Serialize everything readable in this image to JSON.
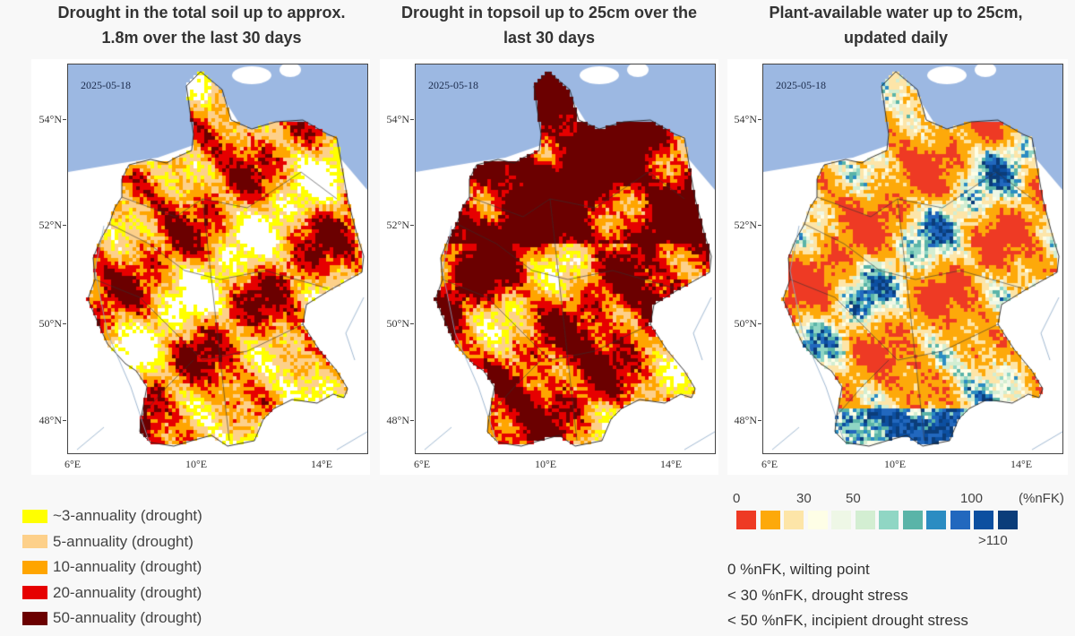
{
  "panels": [
    {
      "title_line1": "Drought in the total soil up to approx.",
      "title_line2": "1.8m over the last 30 days",
      "date": "2025-05-18",
      "palette": "drought",
      "seed": 11,
      "dry_bias": 0.45
    },
    {
      "title_line1": "Drought in topsoil up to 25cm over the",
      "title_line2": "last 30 days",
      "date": "2025-05-18",
      "palette": "drought",
      "seed": 23,
      "dry_bias": 0.75
    },
    {
      "title_line1": "Plant-available water up to 25cm,",
      "title_line2": "updated daily",
      "date": "2025-05-18",
      "palette": "nfk",
      "seed": 37,
      "dry_bias": 0.5
    }
  ],
  "axes": {
    "lat_labels": [
      "54°N",
      "52°N",
      "50°N",
      "48°N"
    ],
    "lon_labels": [
      "6°E",
      "10°E",
      "14°E"
    ]
  },
  "drought_legend": [
    {
      "label": "~3-annuality (drought)",
      "color": "#ffff00"
    },
    {
      "label": "5-annuality (drought)",
      "color": "#fdd08a"
    },
    {
      "label": "10-annuality (drought)",
      "color": "#ffa500"
    },
    {
      "label": "20-annuality (drought)",
      "color": "#e60000"
    },
    {
      "label": "50-annuality (drought)",
      "color": "#6b0000"
    }
  ],
  "nfk_scale": {
    "tick_labels": [
      "0",
      "30",
      "50",
      "100",
      "(%nFK)"
    ],
    "below_label": ">110",
    "colors": [
      "#ee3a24",
      "#fda90a",
      "#fde5a8",
      "#fefee6",
      "#eef7e6",
      "#d3eed2",
      "#90d6c4",
      "#5ab4a8",
      "#2b8cc2",
      "#2268be",
      "#0c4fa0",
      "#0b3d7a"
    ]
  },
  "nfk_notes": [
    "0 %nFK, wilting point",
    "< 30 %nFK, drought stress",
    "< 50 %nFK, incipient drought stress"
  ],
  "map_colors": {
    "sea": "#9cb8e2",
    "land_outside": "#ffffff",
    "border": "#222222",
    "river": "#8aa8c8"
  }
}
